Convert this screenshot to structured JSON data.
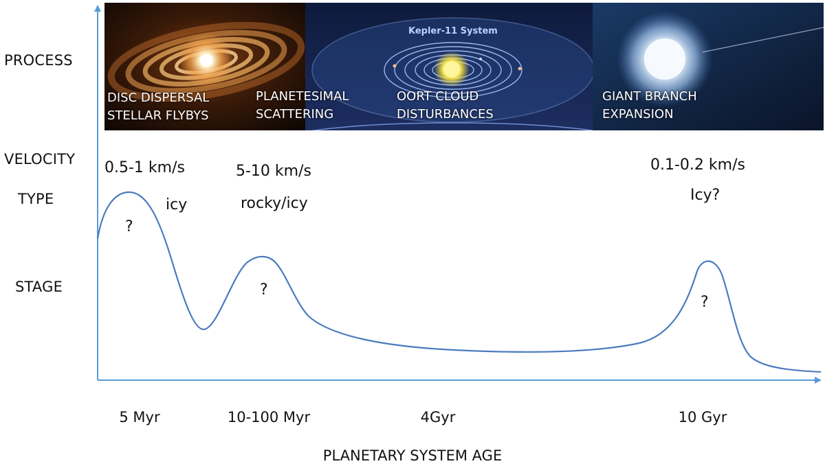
{
  "row_labels": {
    "process": "PROCESS",
    "velocity": "VELOCITY",
    "type": "TYPE",
    "stage": "STAGE"
  },
  "panels": {
    "disc": {
      "line1": "DISC DISPERSAL",
      "line2": "STELLAR FLYBYS"
    },
    "planetesimal": {
      "line1": "PLANETESIMAL",
      "line2": "SCATTERING"
    },
    "oort": {
      "title": "Kepler-11 System",
      "line1": "OORT CLOUD",
      "line2": "DISTURBANCES"
    },
    "giant": {
      "line1": "GIANT BRANCH",
      "line2": "EXPANSION"
    }
  },
  "peaks": {
    "peak1": {
      "velocity": "0.5-1 km/s",
      "type": "icy",
      "stage": "?"
    },
    "peak2": {
      "velocity": "5-10 km/s",
      "type": "rocky/icy",
      "stage": "?"
    },
    "peak3": {
      "velocity": "0.1-0.2 km/s",
      "type": "Icy?",
      "stage": "?"
    }
  },
  "x_axis": {
    "ticks": [
      "5 Myr",
      "10-100 Myr",
      "4Gyr",
      "10 Gyr"
    ],
    "title": "PLANETARY SYSTEM AGE"
  },
  "colors": {
    "axis": "#5b9bd5",
    "curve": "#4a7bbf",
    "panel_text": "#ffffff"
  }
}
